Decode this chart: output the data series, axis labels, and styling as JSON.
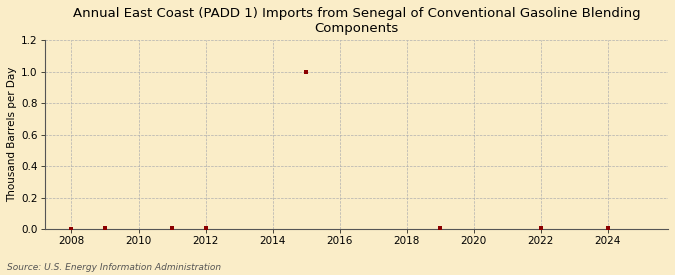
{
  "title": "Annual East Coast (PADD 1) Imports from Senegal of Conventional Gasoline Blending\nComponents",
  "ylabel": "Thousand Barrels per Day",
  "source": "Source: U.S. Energy Information Administration",
  "background_color": "#faedc8",
  "plot_bg_color": "#faedc8",
  "x_data": [
    2008,
    2009,
    2011,
    2012,
    2015,
    2019,
    2022,
    2024
  ],
  "y_data": [
    0.0,
    0.01,
    0.01,
    0.01,
    1.0,
    0.01,
    0.01,
    0.01
  ],
  "marker_color": "#8b0000",
  "marker_size": 3,
  "xlim": [
    2007.2,
    2025.8
  ],
  "ylim": [
    0.0,
    1.2
  ],
  "yticks": [
    0.0,
    0.2,
    0.4,
    0.6,
    0.8,
    1.0,
    1.2
  ],
  "xticks": [
    2008,
    2010,
    2012,
    2014,
    2016,
    2018,
    2020,
    2022,
    2024
  ],
  "grid_color": "#b0b0b0",
  "title_fontsize": 9.5,
  "label_fontsize": 7.5,
  "tick_fontsize": 7.5,
  "source_fontsize": 6.5
}
